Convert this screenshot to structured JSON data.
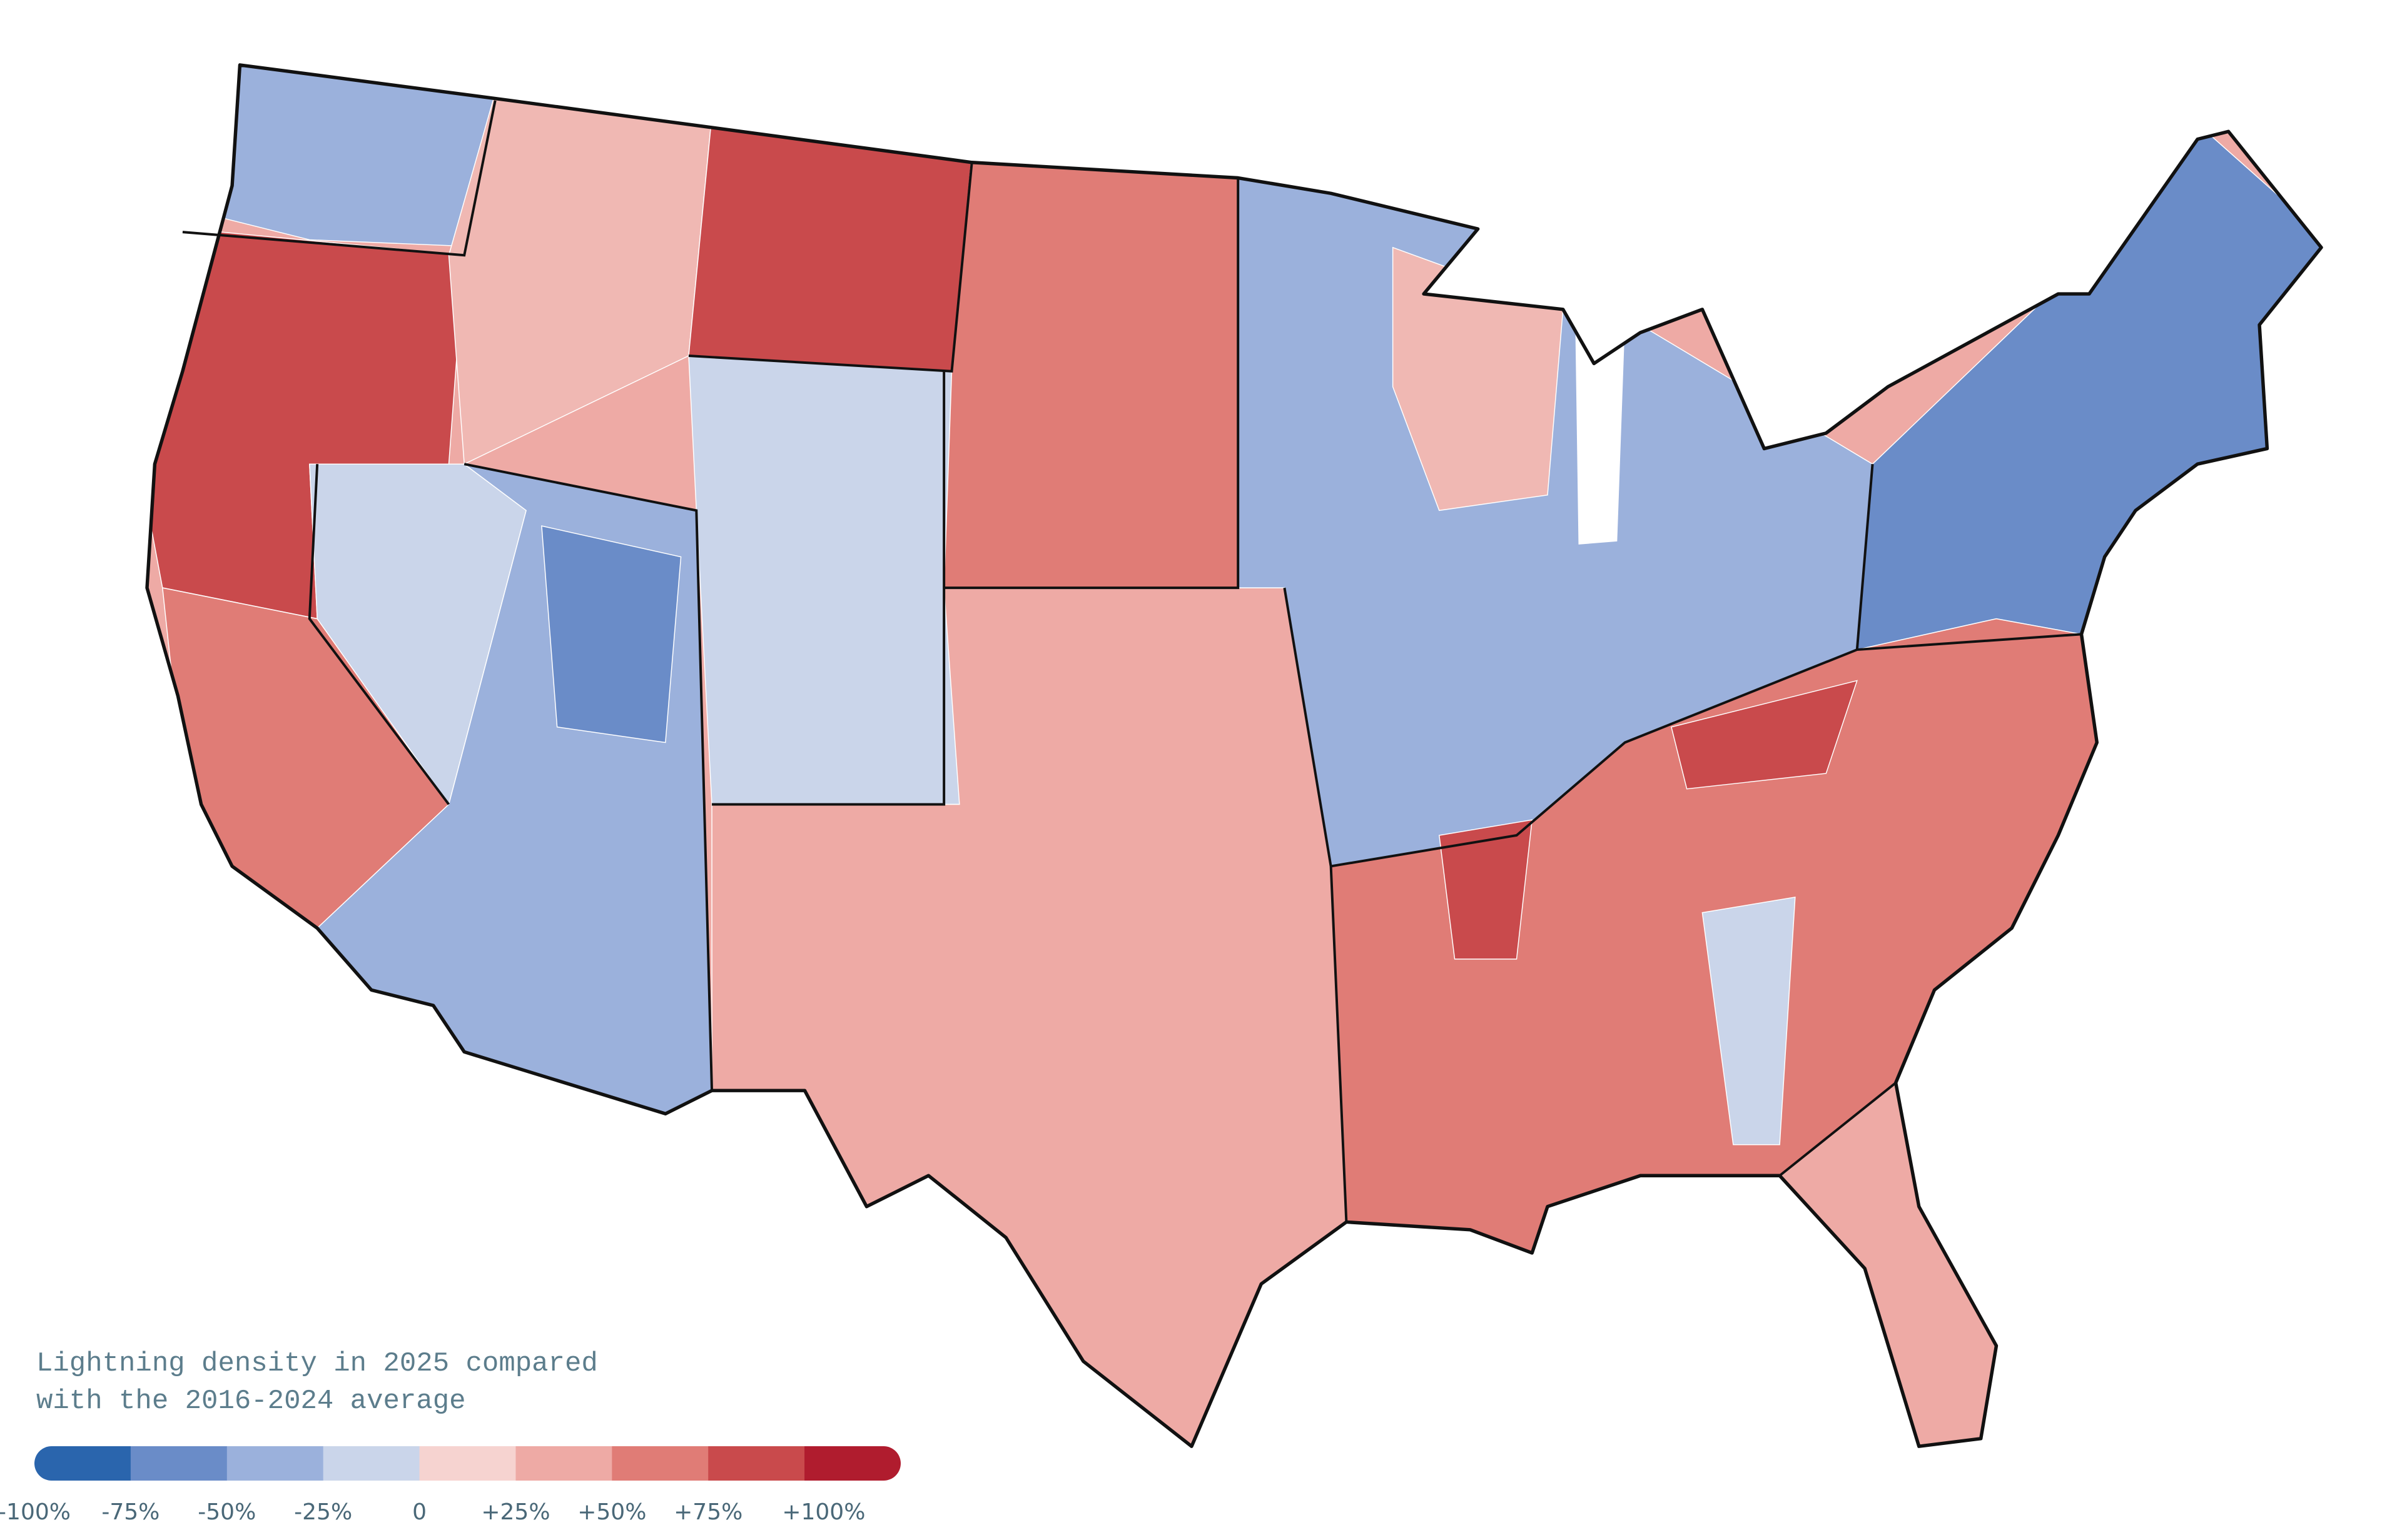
{
  "title_lines": [
    "Lightning density in 2025 compared",
    "with the 2016-2024 average"
  ],
  "legend": {
    "colors": [
      "#2a65ad",
      "#6a8cc8",
      "#9bb1dc",
      "#cad5ea",
      "#f6d3d0",
      "#eeaaa5",
      "#e07c76",
      "#c94a4c",
      "#b01c2e"
    ],
    "ticks": [
      {
        "value": -100,
        "label": "-100%"
      },
      {
        "value": -75,
        "label": "-75%"
      },
      {
        "value": -50,
        "label": "-50%"
      },
      {
        "value": -25,
        "label": "-25%"
      },
      0,
      {
        "value": 25,
        "label": "+25%"
      },
      {
        "value": 50,
        "label": "+50%"
      },
      {
        "value": 75,
        "label": "+75%"
      },
      {
        "value": 100,
        "label": "+100%"
      }
    ]
  }
}
